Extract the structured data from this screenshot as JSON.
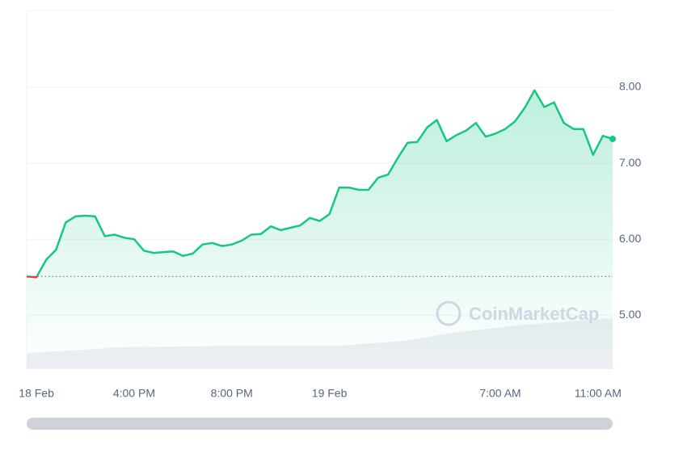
{
  "chart_data": {
    "type": "line",
    "watermark": "CoinMarketCap",
    "x": [
      11.6,
      12.0,
      12.4,
      12.8,
      13.2,
      13.6,
      14.0,
      14.4,
      14.8,
      15.2,
      15.6,
      16.0,
      16.4,
      16.8,
      17.2,
      17.6,
      18.0,
      18.4,
      18.8,
      19.2,
      19.6,
      20.0,
      20.4,
      20.8,
      21.2,
      21.6,
      22.0,
      22.4,
      22.8,
      23.2,
      23.6,
      24.0,
      24.4,
      24.8,
      25.2,
      25.6,
      26.0,
      26.4,
      26.8,
      27.2,
      27.6,
      28.0,
      28.4,
      28.8,
      29.2,
      29.6,
      30.0,
      30.4,
      30.8,
      31.2,
      31.6,
      32.0,
      32.4,
      32.8,
      33.2,
      33.6,
      34.0,
      34.4,
      34.8,
      35.2,
      35.6
    ],
    "series": [
      {
        "color": "#16c784",
        "down_color": "#ea3943",
        "values": [
          5.51,
          5.5,
          5.73,
          5.86,
          6.22,
          6.3,
          6.31,
          6.3,
          6.04,
          6.06,
          6.02,
          6.0,
          5.85,
          5.82,
          5.83,
          5.84,
          5.78,
          5.81,
          5.93,
          5.95,
          5.91,
          5.93,
          5.98,
          6.06,
          6.07,
          6.17,
          6.12,
          6.15,
          6.18,
          6.28,
          6.24,
          6.33,
          6.68,
          6.68,
          6.65,
          6.65,
          6.81,
          6.85,
          7.07,
          7.27,
          7.28,
          7.47,
          7.57,
          7.29,
          7.37,
          7.43,
          7.53,
          7.35,
          7.39,
          7.45,
          7.55,
          7.73,
          7.96,
          7.74,
          7.8,
          7.53,
          7.45,
          7.45,
          7.11,
          7.36,
          7.32
        ]
      }
    ],
    "reference": 5.51,
    "xlim": [
      11.6,
      35.6
    ],
    "xticks": [
      {
        "value": 12,
        "label": "18 Feb"
      },
      {
        "value": 16,
        "label": "4:00 PM"
      },
      {
        "value": 20,
        "label": "8:00 PM"
      },
      {
        "value": 24,
        "label": "19 Feb"
      },
      {
        "value": 31,
        "label": "7:00 AM"
      },
      {
        "value": 35,
        "label": "11:00 AM"
      }
    ],
    "ylim": [
      4.29,
      9.01
    ],
    "yticks": [
      {
        "value": 5,
        "label": "5.00"
      },
      {
        "value": 6,
        "label": "6.00"
      },
      {
        "value": 7,
        "label": "7.00"
      },
      {
        "value": 8,
        "label": "8.00"
      }
    ],
    "grid": true
  }
}
